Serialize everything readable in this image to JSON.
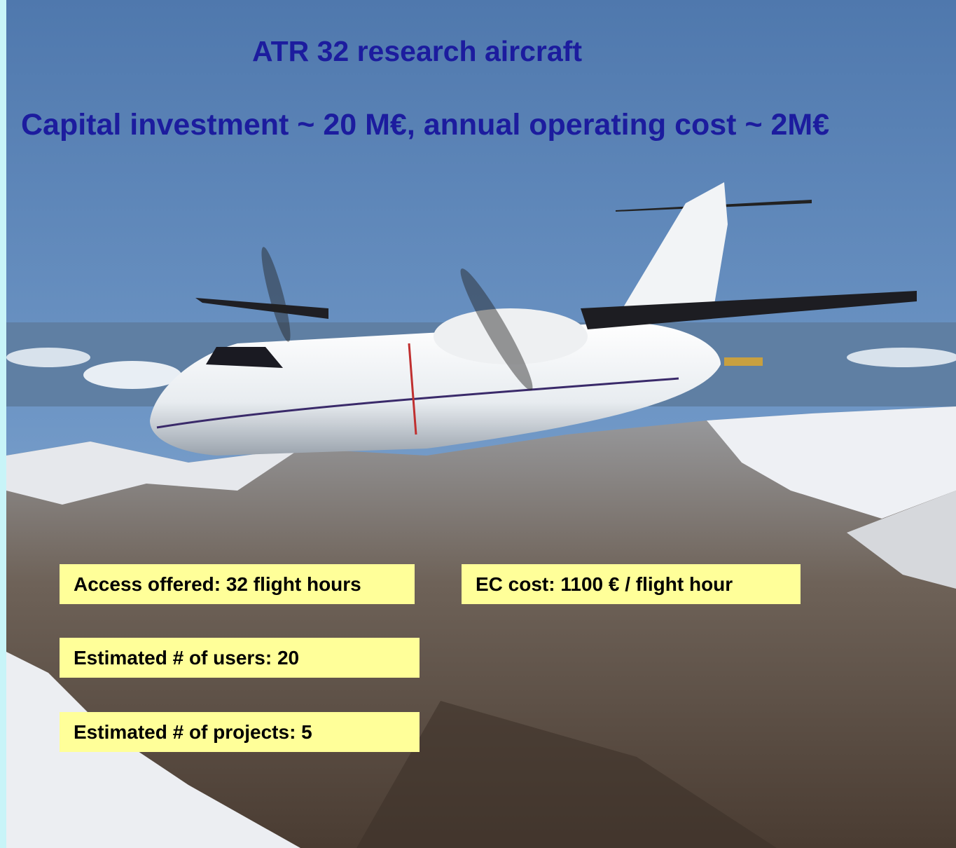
{
  "slide": {
    "title": "ATR 32 research aircraft",
    "subtitle": "Capital investment ~ 20 M€, annual operating cost ~ 2M€",
    "boxes": [
      "Access offered: 32 flight hours",
      "EC cost: 1100 € / flight hour",
      "Estimated # of users: 20",
      "Estimated # of projects: 5"
    ]
  }
}
